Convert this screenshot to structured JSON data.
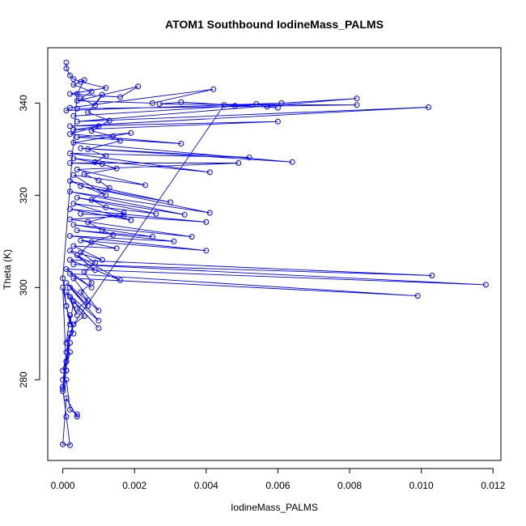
{
  "chart_data": {
    "type": "line",
    "title": "ATOM1 Southbound IodineMass_PALMS",
    "xlabel": "IodineMass_PALMS",
    "ylabel": "Theta (K)",
    "xlim": [
      -0.00042,
      0.01222
    ],
    "ylim": [
      262.5,
      352.0
    ],
    "xticks": [
      0.0,
      0.002,
      0.004,
      0.006,
      0.008,
      0.01,
      0.012
    ],
    "xtick_labels": [
      "0.000",
      "0.002",
      "0.004",
      "0.006",
      "0.008",
      "0.010",
      "0.012"
    ],
    "yticks": [
      280,
      300,
      320,
      340
    ],
    "ytick_labels": [
      "280",
      "300",
      "320",
      "340"
    ],
    "grid": false,
    "color": "#0000ff",
    "series": [
      {
        "values": [
          [
            0.0001,
            348.8
          ],
          [
            0.0001,
            347.5
          ],
          [
            0.0002,
            346.0
          ],
          [
            0.0003,
            345.2
          ],
          [
            0.0005,
            344.6
          ],
          [
            0.0012,
            343.3
          ],
          [
            0.0002,
            342.0
          ],
          [
            0.0016,
            341.3
          ],
          [
            0.0021,
            343.6
          ],
          [
            0.0004,
            340.5
          ],
          [
            0.0025,
            340.0
          ],
          [
            0.0042,
            343.0
          ],
          [
            0.0002,
            339.0
          ],
          [
            0.0001,
            338.4
          ],
          [
            0.0061,
            340.0
          ],
          [
            0.0003,
            337.2
          ],
          [
            0.0082,
            341.0
          ],
          [
            0.0004,
            336.0
          ],
          [
            0.0102,
            339.1
          ],
          [
            0.0002,
            335.0
          ],
          [
            0.006,
            336.0
          ],
          [
            0.0003,
            334.2
          ],
          [
            0.001,
            335.0
          ],
          [
            0.0002,
            333.3
          ],
          [
            0.0033,
            331.2
          ],
          [
            0.0004,
            332.6
          ],
          [
            0.0019,
            333.5
          ],
          [
            0.0003,
            331.4
          ],
          [
            0.0064,
            327.2
          ],
          [
            0.0005,
            330.2
          ],
          [
            0.0052,
            328.2
          ],
          [
            0.0002,
            329.1
          ],
          [
            0.0041,
            325.0
          ],
          [
            0.0003,
            328.0
          ],
          [
            0.0011,
            326.8
          ],
          [
            0.0002,
            327.0
          ],
          [
            0.0049,
            327.0
          ],
          [
            0.0004,
            325.6
          ],
          [
            0.0023,
            322.2
          ],
          [
            0.0003,
            324.4
          ],
          [
            0.0012,
            320.0
          ],
          [
            0.0002,
            323.1
          ],
          [
            0.003,
            318.5
          ],
          [
            0.0005,
            322.0
          ],
          [
            0.0041,
            316.2
          ],
          [
            0.0002,
            320.8
          ],
          [
            0.0034,
            315.8
          ],
          [
            0.0004,
            319.5
          ],
          [
            0.0026,
            316.0
          ],
          [
            0.0003,
            318.2
          ],
          [
            0.0019,
            314.6
          ],
          [
            0.0002,
            317.0
          ],
          [
            0.004,
            314.2
          ],
          [
            0.0005,
            316.0
          ],
          [
            0.0017,
            315.5
          ],
          [
            0.0002,
            314.8
          ],
          [
            0.0036,
            311.0
          ],
          [
            0.0003,
            313.6
          ],
          [
            0.0025,
            311.0
          ],
          [
            0.0004,
            312.4
          ],
          [
            0.0031,
            310.0
          ],
          [
            0.0002,
            311.2
          ],
          [
            0.004,
            308.0
          ],
          [
            0.0005,
            310.2
          ],
          [
            0.0015,
            308.5
          ],
          [
            0.0003,
            309.0
          ],
          [
            0.0011,
            306.0
          ],
          [
            0.0002,
            308.0
          ],
          [
            0.0009,
            303.8
          ],
          [
            0.0004,
            307.0
          ],
          [
            0.0016,
            301.6
          ],
          [
            0.0002,
            306.0
          ],
          [
            0.0103,
            302.6
          ],
          [
            0.0003,
            305.0
          ],
          [
            0.0118,
            300.6
          ],
          [
            0.0001,
            304.0
          ],
          [
            0.0008,
            300.0
          ],
          [
            0.0002,
            303.0
          ],
          [
            0.0099,
            298.2
          ],
          [
            0.0003,
            302.0
          ],
          [
            0.001,
            295.0
          ],
          [
            0.0001,
            301.0
          ],
          [
            0.0007,
            296.0
          ],
          [
            0.0002,
            300.0
          ],
          [
            0.001,
            292.8
          ],
          [
            0.0001,
            299.0
          ],
          [
            0.0004,
            294.0
          ],
          [
            0.0002,
            298.0
          ],
          [
            0.001,
            291.2
          ],
          [
            0.0003,
            297.0
          ],
          [
            0.0002,
            292.0
          ],
          [
            0.0001,
            296.0
          ],
          [
            0.0003,
            290.0
          ],
          [
            0.0002,
            294.0
          ],
          [
            0.0001,
            288.0
          ],
          [
            0.0003,
            292.0
          ],
          [
            0.0001,
            286.0
          ],
          [
            0.0002,
            290.0
          ],
          [
            0.0001,
            284.0
          ],
          [
            0.0002,
            288.0
          ],
          [
            0.0,
            282.0
          ],
          [
            0.0002,
            286.0
          ],
          [
            0.0,
            280.0
          ],
          [
            0.0001,
            284.0
          ],
          [
            0.0,
            278.5
          ],
          [
            0.0001,
            282.0
          ],
          [
            0.0,
            277.5
          ],
          [
            0.0001,
            280.0
          ],
          [
            0.0002,
            273.5
          ],
          [
            0.0004,
            272.5
          ],
          [
            0.0004,
            272.0
          ],
          [
            0.0001,
            276.0
          ],
          [
            0.0,
            266.0
          ],
          [
            0.0002,
            265.8
          ],
          [
            0.0001,
            272.0
          ],
          [
            0.0,
            278.0
          ],
          [
            0.0001,
            282.0
          ],
          [
            0.0,
            300.0
          ],
          [
            0.0001,
            296.0
          ],
          [
            0.0,
            302.0
          ],
          [
            0.0004,
            342.0
          ],
          [
            0.0006,
            345.0
          ],
          [
            0.0003,
            344.0
          ],
          [
            0.0008,
            342.5
          ],
          [
            0.0005,
            341.0
          ],
          [
            0.0009,
            339.5
          ],
          [
            0.0011,
            341.8
          ],
          [
            0.0007,
            338.0
          ],
          [
            0.0013,
            336.2
          ],
          [
            0.0008,
            334.0
          ],
          [
            0.0014,
            332.8
          ],
          [
            0.0016,
            331.8
          ],
          [
            0.0007,
            330.0
          ],
          [
            0.0012,
            328.5
          ],
          [
            0.0009,
            327.2
          ],
          [
            0.0015,
            325.8
          ],
          [
            0.0006,
            324.6
          ],
          [
            0.001,
            323.2
          ],
          [
            0.0013,
            321.6
          ],
          [
            0.0008,
            319.0
          ],
          [
            0.0012,
            317.4
          ],
          [
            0.0017,
            316.2
          ],
          [
            0.0007,
            314.2
          ],
          [
            0.0011,
            312.5
          ],
          [
            0.0014,
            311.4
          ],
          [
            0.0008,
            309.8
          ],
          [
            0.0005,
            307.6
          ],
          [
            0.0009,
            305.4
          ],
          [
            0.0006,
            303.4
          ],
          [
            0.0008,
            301.0
          ],
          [
            0.0005,
            299.0
          ],
          [
            0.0007,
            297.2
          ],
          [
            0.0004,
            295.4
          ],
          [
            0.0006,
            293.8
          ],
          [
            0.0003,
            292.0
          ],
          [
            0.0045,
            339.6
          ],
          [
            0.0048,
            339.4
          ],
          [
            0.0054,
            339.8
          ],
          [
            0.0057,
            339.2
          ],
          [
            0.006,
            339.0
          ],
          [
            0.0033,
            340.2
          ],
          [
            0.0027,
            339.8
          ],
          [
            0.0082,
            339.6
          ],
          [
            0.0004,
            338.8
          ]
        ]
      }
    ]
  }
}
